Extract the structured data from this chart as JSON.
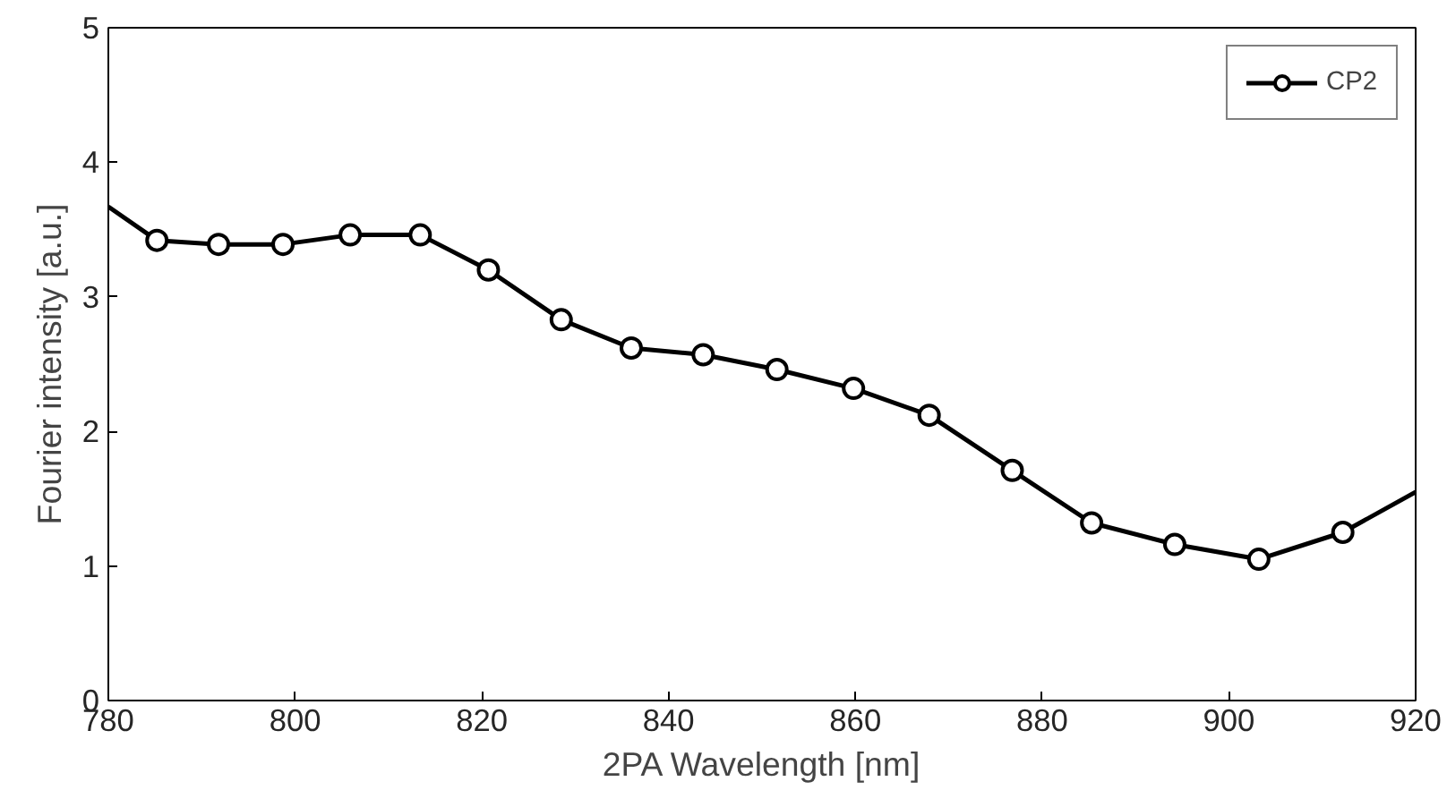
{
  "chart_data": {
    "type": "line",
    "xlabel": "2PA Wavelength [nm]",
    "ylabel": "Fourier intensity [a.u.]",
    "xlim": [
      780,
      920
    ],
    "ylim": [
      0,
      5
    ],
    "xticks": [
      780,
      800,
      820,
      840,
      860,
      880,
      900,
      920
    ],
    "yticks": [
      0,
      1,
      2,
      3,
      4,
      5
    ],
    "grid": false,
    "legend": "top right",
    "series": [
      {
        "name": "CP2",
        "color": "#000000",
        "marker": "circle",
        "x": [
          780,
          785.2,
          791.8,
          798.7,
          805.9,
          813.4,
          820.7,
          828.5,
          836,
          843.7,
          851.6,
          859.8,
          867.9,
          876.8,
          885.3,
          894.2,
          903.2,
          912.2,
          920
        ],
        "values": [
          3.67,
          3.42,
          3.39,
          3.39,
          3.46,
          3.46,
          3.2,
          2.83,
          2.62,
          2.57,
          2.46,
          2.32,
          2.12,
          1.71,
          1.32,
          1.16,
          1.05,
          1.25,
          1.55
        ]
      }
    ]
  }
}
